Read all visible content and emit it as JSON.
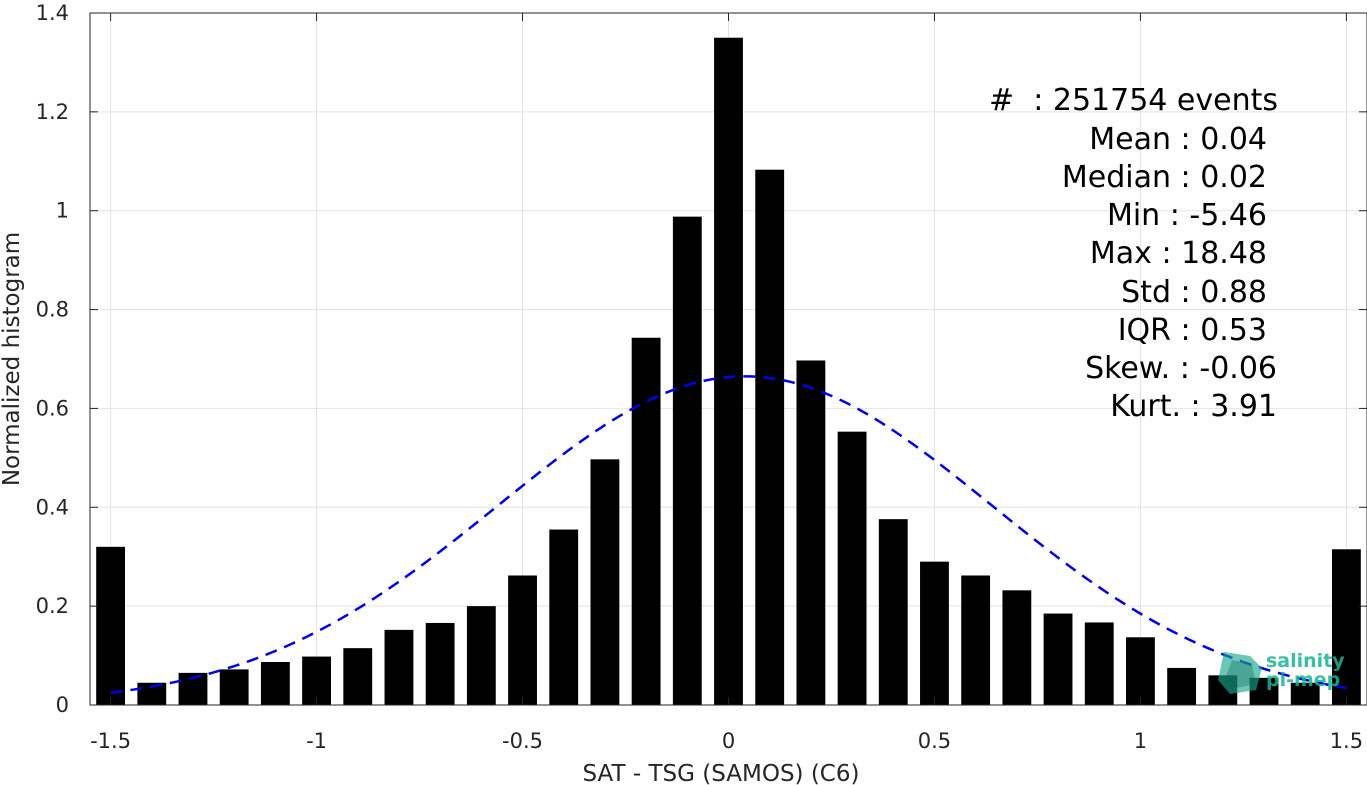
{
  "chart_data": {
    "type": "bar",
    "xlabel": "SAT - TSG (SAMOS) (C6)",
    "ylabel": "Normalized histogram",
    "xlim": [
      -1.55,
      1.55
    ],
    "ylim": [
      0,
      1.4
    ],
    "grid": true,
    "x_ticks": [
      -1.5,
      -1,
      -0.5,
      0,
      0.5,
      1,
      1.5
    ],
    "x_tick_labels": [
      "-1.5",
      "-1",
      "-0.5",
      "0",
      "0.5",
      "1",
      "1.5"
    ],
    "y_ticks": [
      0,
      0.2,
      0.4,
      0.6,
      0.8,
      1,
      1.2,
      1.4
    ],
    "y_tick_labels": [
      "0",
      "0.2",
      "0.4",
      "0.6",
      "0.8",
      "1",
      "1.2",
      "1.4"
    ],
    "bars": {
      "x": [
        -1.5,
        -1.4,
        -1.3,
        -1.2,
        -1.1,
        -1.0,
        -0.9,
        -0.8,
        -0.7,
        -0.6,
        -0.5,
        -0.4,
        -0.3,
        -0.2,
        -0.1,
        0.0,
        0.1,
        0.2,
        0.3,
        0.4,
        0.5,
        0.6,
        0.7,
        0.8,
        0.9,
        1.0,
        1.1,
        1.2,
        1.3,
        1.4,
        1.5
      ],
      "values": [
        0.32,
        0.045,
        0.065,
        0.072,
        0.087,
        0.098,
        0.115,
        0.152,
        0.166,
        0.2,
        0.262,
        0.355,
        0.497,
        0.743,
        0.988,
        1.35,
        1.083,
        0.697,
        0.553,
        0.376,
        0.29,
        0.262,
        0.232,
        0.185,
        0.167,
        0.137,
        0.075,
        0.06,
        0.055,
        0.045,
        0.315
      ],
      "color": "#000000"
    },
    "fit": {
      "type": "gaussian",
      "mean": 0.04,
      "std": 0.6,
      "x_range": [
        -1.5,
        1.5
      ],
      "style": "dashed",
      "color": "#0000ee"
    },
    "stats": [
      "#  : 251754 events",
      "Mean : 0.04",
      "Median : 0.02",
      "Min : -5.46",
      "Max : 18.48",
      "Std : 0.88",
      "IQR : 0.53",
      "Skew. : -0.06",
      "Kurt. : 3.91"
    ]
  },
  "logo": {
    "line1": "salinity",
    "line2": "pi-mep",
    "color": "#17b39a"
  }
}
